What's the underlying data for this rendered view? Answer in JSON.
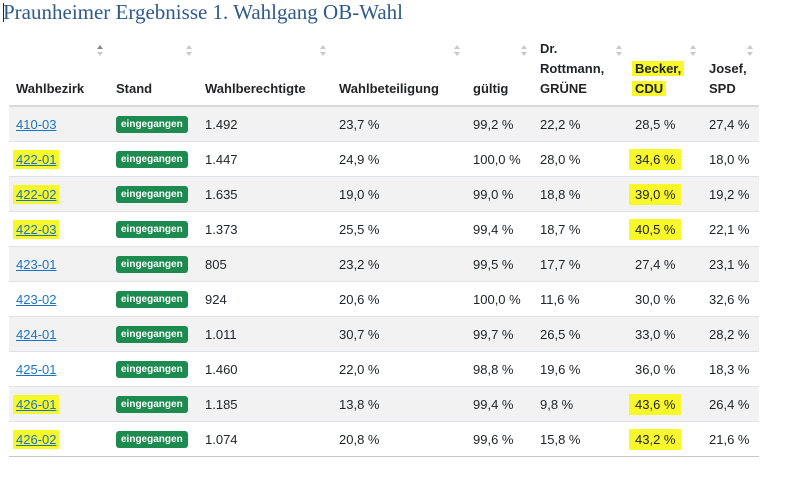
{
  "title": "Praunheimer Ergebnisse 1. Wahlgang OB-Wahl",
  "columns": [
    [
      "Wahlbezirk"
    ],
    [
      "Stand"
    ],
    [
      "Wahlberechtigte"
    ],
    [
      "Wahlbeteiligung"
    ],
    [
      "gültig"
    ],
    [
      "Dr.",
      "Rottmann,",
      "GRÜNE"
    ],
    [
      "Becker,",
      "CDU"
    ],
    [
      "Josef,",
      "SPD"
    ]
  ],
  "highlight_color": "#f7f72a",
  "rows": [
    {
      "bezirk": "410-03",
      "stand": "eingegangen",
      "berechtigte": "1.492",
      "beteiligung": "23,7 %",
      "gueltig": "99,2 %",
      "gruene": "22,2 %",
      "cdu": "28,5 %",
      "spd": "27,4 %",
      "hl_bezirk": false,
      "hl_cdu": false
    },
    {
      "bezirk": "422-01",
      "stand": "eingegangen",
      "berechtigte": "1.447",
      "beteiligung": "24,9 %",
      "gueltig": "100,0 %",
      "gruene": "28,0 %",
      "cdu": "34,6 %",
      "spd": "18,0 %",
      "hl_bezirk": true,
      "hl_cdu": true
    },
    {
      "bezirk": "422-02",
      "stand": "eingegangen",
      "berechtigte": "1.635",
      "beteiligung": "19,0 %",
      "gueltig": "99,0 %",
      "gruene": "18,8 %",
      "cdu": "39,0 %",
      "spd": "19,2 %",
      "hl_bezirk": true,
      "hl_cdu": true
    },
    {
      "bezirk": "422-03",
      "stand": "eingegangen",
      "berechtigte": "1.373",
      "beteiligung": "25,5 %",
      "gueltig": "99,4 %",
      "gruene": "18,7 %",
      "cdu": "40,5 %",
      "spd": "22,1 %",
      "hl_bezirk": true,
      "hl_cdu": true
    },
    {
      "bezirk": "423-01",
      "stand": "eingegangen",
      "berechtigte": "805",
      "beteiligung": "23,2 %",
      "gueltig": "99,5 %",
      "gruene": "17,7 %",
      "cdu": "27,4 %",
      "spd": "23,1 %",
      "hl_bezirk": false,
      "hl_cdu": false
    },
    {
      "bezirk": "423-02",
      "stand": "eingegangen",
      "berechtigte": "924",
      "beteiligung": "20,6 %",
      "gueltig": "100,0 %",
      "gruene": "11,6 %",
      "cdu": "30,0 %",
      "spd": "32,6 %",
      "hl_bezirk": false,
      "hl_cdu": false
    },
    {
      "bezirk": "424-01",
      "stand": "eingegangen",
      "berechtigte": "1.011",
      "beteiligung": "30,7 %",
      "gueltig": "99,7 %",
      "gruene": "26,5 %",
      "cdu": "33,0 %",
      "spd": "28,2 %",
      "hl_bezirk": false,
      "hl_cdu": false
    },
    {
      "bezirk": "425-01",
      "stand": "eingegangen",
      "berechtigte": "1.460",
      "beteiligung": "22,0 %",
      "gueltig": "98,8 %",
      "gruene": "19,6 %",
      "cdu": "36,0 %",
      "spd": "18,3 %",
      "hl_bezirk": false,
      "hl_cdu": false
    },
    {
      "bezirk": "426-01",
      "stand": "eingegangen",
      "berechtigte": "1.185",
      "beteiligung": "13,8 %",
      "gueltig": "99,4 %",
      "gruene": "9,8 %",
      "cdu": "43,6 %",
      "spd": "26,4 %",
      "hl_bezirk": true,
      "hl_cdu": true
    },
    {
      "bezirk": "426-02",
      "stand": "eingegangen",
      "berechtigte": "1.074",
      "beteiligung": "20,8 %",
      "gueltig": "99,6 %",
      "gruene": "15,8 %",
      "cdu": "43,2 %",
      "spd": "21,6 %",
      "hl_bezirk": true,
      "hl_cdu": true
    }
  ]
}
